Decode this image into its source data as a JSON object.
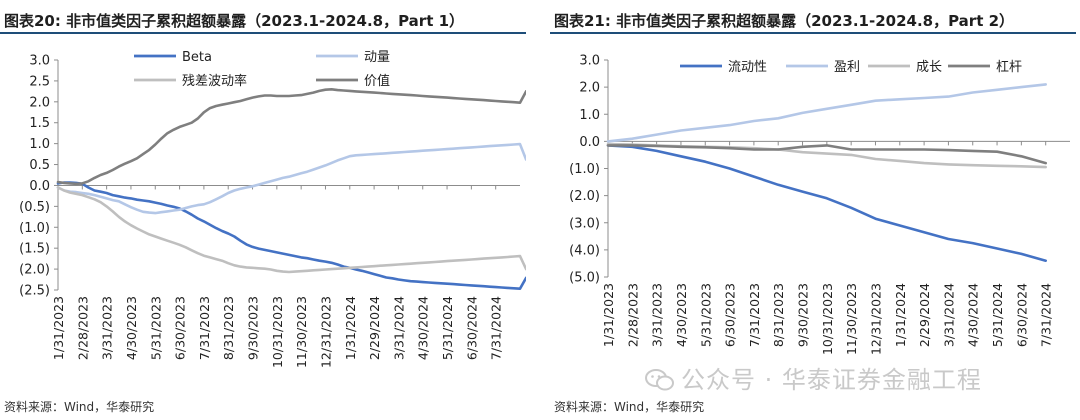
{
  "left": {
    "title": "图表20:  非市值类因子累积超额暴露（2023.1-2024.8，Part 1）",
    "source": "资料来源：Wind，华泰研究"
  },
  "right": {
    "title": "图表21:  非市值类因子累积超额暴露（2023.1-2024.8，Part 2）",
    "source": "资料来源：Wind，华泰研究"
  },
  "watermark": {
    "text": "公众号 · 华泰证券金融工程",
    "icon": "wechat-icon"
  },
  "chart_data": [
    {
      "type": "line",
      "ylim": [
        -2.5,
        3.0
      ],
      "yticks": [
        3.0,
        2.5,
        2.0,
        1.5,
        1.0,
        0.5,
        0.0,
        -0.5,
        -1.0,
        -1.5,
        -2.0,
        -2.5
      ],
      "ytick_labels": [
        "3.0",
        "2.5",
        "2.0",
        "1.5",
        "1.0",
        "0.5",
        "0.0",
        "(0.5)",
        "(1.0)",
        "(1.5)",
        "(2.0)",
        "(2.5)"
      ],
      "grid": false,
      "legend": "top",
      "categories": [
        "1/31/2023",
        "2/28/2023",
        "3/31/2023",
        "4/30/2023",
        "5/31/2023",
        "6/30/2023",
        "7/31/2023",
        "8/31/2023",
        "9/30/2023",
        "10/31/2023",
        "11/30/2023",
        "12/31/2023",
        "1/31/2024",
        "2/29/2024",
        "3/31/2024",
        "4/30/2024",
        "5/31/2024",
        "6/30/2024",
        "7/31/2024"
      ],
      "x": [
        0,
        0.25,
        0.5,
        0.75,
        1,
        1.25,
        1.5,
        1.75,
        2,
        2.25,
        2.5,
        2.75,
        3,
        3.25,
        3.5,
        3.75,
        4,
        4.25,
        4.5,
        4.75,
        5,
        5.25,
        5.5,
        5.75,
        6,
        6.25,
        6.5,
        6.75,
        7,
        7.25,
        7.5,
        7.75,
        8,
        8.25,
        8.5,
        8.75,
        9,
        9.25,
        9.5,
        9.75,
        10,
        10.25,
        10.5,
        10.75,
        11,
        11.25,
        11.5,
        11.75,
        12,
        12.25,
        12.5,
        12.75,
        13,
        13.25,
        13.5,
        13.75,
        14,
        14.25,
        14.5,
        14.75,
        15,
        15.25,
        15.5,
        15.75,
        16,
        16.25,
        16.5,
        16.75,
        17,
        17.25,
        17.5,
        17.75,
        18,
        18.25,
        18.5,
        18.75,
        19,
        19.25
      ],
      "series": [
        {
          "name": "Beta",
          "color": "#4472c4",
          "values": [
            0.05,
            0.07,
            0.07,
            0.06,
            0.04,
            -0.05,
            -0.12,
            -0.15,
            -0.18,
            -0.23,
            -0.26,
            -0.29,
            -0.31,
            -0.34,
            -0.36,
            -0.38,
            -0.41,
            -0.44,
            -0.48,
            -0.51,
            -0.55,
            -0.62,
            -0.7,
            -0.79,
            -0.86,
            -0.94,
            -1.02,
            -1.09,
            -1.15,
            -1.22,
            -1.32,
            -1.41,
            -1.47,
            -1.51,
            -1.54,
            -1.57,
            -1.6,
            -1.63,
            -1.66,
            -1.69,
            -1.72,
            -1.74,
            -1.77,
            -1.8,
            -1.82,
            -1.85,
            -1.89,
            -1.94,
            -1.97,
            -2.01,
            -2.04,
            -2.08,
            -2.12,
            -2.16,
            -2.2,
            -2.22,
            -2.25,
            -2.27,
            -2.29,
            -2.3,
            -2.31,
            -2.32,
            -2.33,
            -2.34,
            -2.35,
            -2.36,
            -2.37,
            -2.38,
            -2.39,
            -2.4,
            -2.41,
            -2.42,
            -2.43,
            -2.44,
            -2.45,
            -2.46,
            -2.47,
            -2.21
          ]
        },
        {
          "name": "动量",
          "color": "#b4c7e7",
          "values": [
            -0.05,
            -0.12,
            -0.15,
            -0.16,
            -0.18,
            -0.2,
            -0.23,
            -0.27,
            -0.31,
            -0.35,
            -0.38,
            -0.45,
            -0.52,
            -0.58,
            -0.63,
            -0.65,
            -0.66,
            -0.64,
            -0.62,
            -0.6,
            -0.58,
            -0.54,
            -0.5,
            -0.47,
            -0.45,
            -0.4,
            -0.33,
            -0.26,
            -0.18,
            -0.12,
            -0.08,
            -0.05,
            -0.02,
            0.02,
            0.06,
            0.1,
            0.14,
            0.18,
            0.21,
            0.25,
            0.29,
            0.33,
            0.38,
            0.43,
            0.48,
            0.54,
            0.6,
            0.65,
            0.7,
            0.72,
            0.73,
            0.74,
            0.75,
            0.76,
            0.77,
            0.78,
            0.79,
            0.8,
            0.81,
            0.82,
            0.83,
            0.84,
            0.85,
            0.86,
            0.87,
            0.88,
            0.89,
            0.9,
            0.91,
            0.92,
            0.93,
            0.94,
            0.95,
            0.96,
            0.97,
            0.98,
            0.99,
            0.62
          ]
        },
        {
          "name": "残差波动率",
          "color": "#bfbfbf",
          "values": [
            -0.05,
            -0.12,
            -0.17,
            -0.2,
            -0.23,
            -0.28,
            -0.33,
            -0.4,
            -0.5,
            -0.62,
            -0.75,
            -0.86,
            -0.95,
            -1.03,
            -1.1,
            -1.17,
            -1.22,
            -1.27,
            -1.32,
            -1.37,
            -1.42,
            -1.48,
            -1.55,
            -1.62,
            -1.68,
            -1.72,
            -1.76,
            -1.8,
            -1.86,
            -1.91,
            -1.94,
            -1.96,
            -1.97,
            -1.98,
            -1.99,
            -2.01,
            -2.04,
            -2.06,
            -2.07,
            -2.06,
            -2.05,
            -2.04,
            -2.03,
            -2.02,
            -2.01,
            -2.0,
            -1.99,
            -1.98,
            -1.97,
            -1.96,
            -1.95,
            -1.94,
            -1.93,
            -1.92,
            -1.91,
            -1.9,
            -1.89,
            -1.88,
            -1.87,
            -1.86,
            -1.85,
            -1.84,
            -1.83,
            -1.82,
            -1.81,
            -1.8,
            -1.79,
            -1.78,
            -1.77,
            -1.76,
            -1.75,
            -1.74,
            -1.73,
            -1.72,
            -1.71,
            -1.7,
            -1.69,
            -2.0
          ]
        },
        {
          "name": "价值",
          "color": "#7f7f7f",
          "values": [
            0.08,
            0.06,
            0.05,
            0.04,
            0.05,
            0.1,
            0.18,
            0.25,
            0.3,
            0.37,
            0.45,
            0.52,
            0.58,
            0.65,
            0.75,
            0.85,
            0.98,
            1.12,
            1.25,
            1.33,
            1.4,
            1.45,
            1.5,
            1.6,
            1.75,
            1.85,
            1.9,
            1.93,
            1.96,
            1.99,
            2.02,
            2.06,
            2.1,
            2.13,
            2.15,
            2.15,
            2.14,
            2.14,
            2.14,
            2.15,
            2.16,
            2.19,
            2.22,
            2.26,
            2.29,
            2.3,
            2.28,
            2.27,
            2.26,
            2.25,
            2.24,
            2.23,
            2.22,
            2.21,
            2.2,
            2.19,
            2.18,
            2.17,
            2.16,
            2.15,
            2.14,
            2.13,
            2.12,
            2.11,
            2.1,
            2.09,
            2.08,
            2.07,
            2.06,
            2.05,
            2.04,
            2.03,
            2.02,
            2.01,
            2.0,
            1.99,
            1.98,
            2.25
          ]
        }
      ]
    },
    {
      "type": "line",
      "ylim": [
        -5.0,
        3.0
      ],
      "yticks": [
        3.0,
        2.0,
        1.0,
        0.0,
        -1.0,
        -2.0,
        -3.0,
        -4.0,
        -5.0
      ],
      "ytick_labels": [
        "3.0",
        "2.0",
        "1.0",
        "0.0",
        "(1.0)",
        "(2.0)",
        "(3.0)",
        "(4.0)",
        "(5.0)"
      ],
      "grid": false,
      "legend": "top",
      "categories": [
        "1/31/2023",
        "2/28/2023",
        "3/31/2023",
        "4/30/2023",
        "5/31/2023",
        "6/30/2023",
        "7/31/2023",
        "8/31/2023",
        "9/30/2023",
        "10/31/2023",
        "11/30/2023",
        "12/31/2023",
        "1/31/2024",
        "2/29/2024",
        "3/31/2024",
        "4/30/2024",
        "5/31/2024",
        "6/30/2024",
        "7/31/2024"
      ],
      "series": [
        {
          "name": "流动性",
          "color": "#4472c4",
          "values": [
            -0.15,
            -0.2,
            -0.35,
            -0.55,
            -0.75,
            -1.0,
            -1.3,
            -1.6,
            -1.85,
            -2.1,
            -2.45,
            -2.85,
            -3.1,
            -3.35,
            -3.6,
            -3.75,
            -3.95,
            -4.15,
            -4.4
          ]
        },
        {
          "name": "盈利",
          "color": "#b4c7e7",
          "values": [
            0.0,
            0.1,
            0.25,
            0.4,
            0.5,
            0.6,
            0.75,
            0.85,
            1.05,
            1.2,
            1.35,
            1.5,
            1.55,
            1.6,
            1.65,
            1.8,
            1.9,
            2.0,
            2.1
          ]
        },
        {
          "name": "成长",
          "color": "#bfbfbf",
          "values": [
            -0.1,
            -0.12,
            -0.15,
            -0.18,
            -0.2,
            -0.22,
            -0.25,
            -0.3,
            -0.4,
            -0.45,
            -0.5,
            -0.65,
            -0.72,
            -0.8,
            -0.85,
            -0.88,
            -0.9,
            -0.92,
            -0.95
          ]
        },
        {
          "name": "杠杆",
          "color": "#7f7f7f",
          "values": [
            -0.15,
            -0.15,
            -0.17,
            -0.2,
            -0.22,
            -0.25,
            -0.3,
            -0.3,
            -0.2,
            -0.15,
            -0.3,
            -0.3,
            -0.3,
            -0.3,
            -0.32,
            -0.35,
            -0.38,
            -0.55,
            -0.8
          ]
        }
      ]
    }
  ]
}
